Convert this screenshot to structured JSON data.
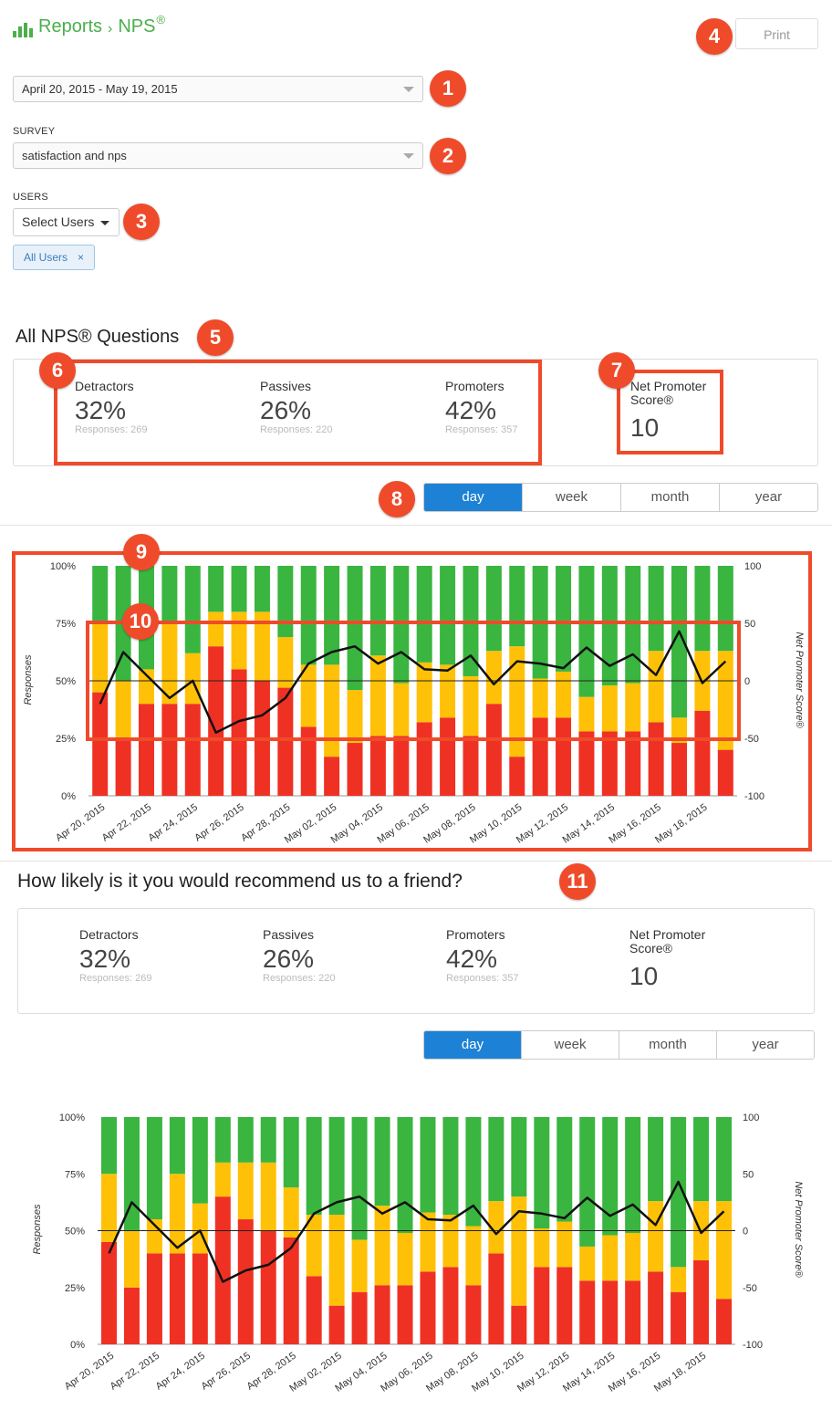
{
  "header": {
    "section": "Reports",
    "page": "NPS",
    "registered": "®",
    "print_label": "Print"
  },
  "filters": {
    "date_range": "April 20, 2015 - May 19, 2015",
    "survey_label": "SURVEY",
    "survey_value": "satisfaction and nps",
    "users_label": "USERS",
    "users_button": "Select Users",
    "user_tag": "All Users",
    "user_tag_remove": "×"
  },
  "annotations": [
    "1",
    "2",
    "3",
    "4",
    "5",
    "6",
    "7",
    "8",
    "9",
    "10",
    "11"
  ],
  "sections": [
    {
      "heading": "All NPS® Questions",
      "detractors_label": "Detractors",
      "detractors_pct": "32%",
      "detractors_resp": "Responses: 269",
      "passives_label": "Passives",
      "passives_pct": "26%",
      "passives_resp": "Responses: 220",
      "promoters_label": "Promoters",
      "promoters_pct": "42%",
      "promoters_resp": "Responses: 357",
      "nps_label_1": "Net Promoter",
      "nps_label_2": "Score®",
      "nps_value": "10",
      "tabs": [
        "day",
        "week",
        "month",
        "year"
      ],
      "active_tab": "day"
    },
    {
      "heading": "How likely is it you would recommend us to a friend?",
      "detractors_label": "Detractors",
      "detractors_pct": "32%",
      "detractors_resp": "Responses: 269",
      "passives_label": "Passives",
      "passives_pct": "26%",
      "passives_resp": "Responses: 220",
      "promoters_label": "Promoters",
      "promoters_pct": "42%",
      "promoters_resp": "Responses: 357",
      "nps_label_1": "Net Promoter",
      "nps_label_2": "Score®",
      "nps_value": "10",
      "tabs": [
        "day",
        "week",
        "month",
        "year"
      ],
      "active_tab": "day"
    }
  ],
  "colors": {
    "detractors": "#ef3124",
    "passives": "#ffc107",
    "promoters": "#3ab540",
    "nps_line": "#111111",
    "accent": "#1d82d6",
    "annotation": "#ef4b2b"
  },
  "chart_data": [
    {
      "type": "bar",
      "stacked": true,
      "title": "",
      "ylabel": "Responses",
      "y2label": "Net Promoter Score®",
      "ylim": [
        0,
        100
      ],
      "y2lim": [
        -100,
        100
      ],
      "yticks": [
        "0%",
        "25%",
        "50%",
        "75%",
        "100%"
      ],
      "y2ticks": [
        "-100",
        "-50",
        "0",
        "50",
        "100"
      ],
      "xtick_labels": [
        "Apr 20, 2015",
        "Apr 22, 2015",
        "Apr 24, 2015",
        "Apr 26, 2015",
        "Apr 28, 2015",
        "May 02, 2015",
        "May 04, 2015",
        "May 06, 2015",
        "May 08, 2015",
        "May 10, 2015",
        "May 12, 2015",
        "May 14, 2015",
        "May 16, 2015",
        "May 18, 2015"
      ],
      "series": [
        {
          "name": "Detractors",
          "values": [
            45,
            25,
            40,
            40,
            40,
            65,
            55,
            50,
            47,
            30,
            17,
            23,
            26,
            26,
            32,
            34,
            26,
            40,
            17,
            34,
            34,
            28,
            28,
            28,
            32,
            23,
            37,
            20
          ]
        },
        {
          "name": "Passives",
          "values": [
            30,
            25,
            15,
            35,
            22,
            15,
            25,
            30,
            22,
            27,
            40,
            23,
            35,
            23,
            26,
            23,
            26,
            23,
            48,
            17,
            20,
            15,
            20,
            21,
            31,
            11,
            26,
            43
          ]
        },
        {
          "name": "Promoters",
          "values": [
            25,
            50,
            45,
            25,
            38,
            20,
            20,
            20,
            31,
            43,
            43,
            54,
            39,
            51,
            42,
            43,
            48,
            37,
            35,
            49,
            46,
            57,
            52,
            51,
            37,
            66,
            37,
            37
          ]
        }
      ],
      "nps": [
        -20,
        25,
        5,
        -15,
        0,
        -45,
        -35,
        -30,
        -15,
        15,
        25,
        30,
        15,
        25,
        10,
        9,
        22,
        -3,
        17,
        15,
        11,
        29,
        13,
        23,
        5,
        43,
        -2,
        17
      ]
    },
    {
      "type": "bar",
      "stacked": true,
      "title": "",
      "ylabel": "Responses",
      "y2label": "Net Promoter Score®",
      "ylim": [
        0,
        100
      ],
      "y2lim": [
        -100,
        100
      ],
      "yticks": [
        "0%",
        "25%",
        "50%",
        "75%",
        "100%"
      ],
      "y2ticks": [
        "-100",
        "-50",
        "0",
        "50",
        "100"
      ],
      "xtick_labels": [
        "Apr 20, 2015",
        "Apr 22, 2015",
        "Apr 24, 2015",
        "Apr 26, 2015",
        "Apr 28, 2015",
        "May 02, 2015",
        "May 04, 2015",
        "May 06, 2015",
        "May 08, 2015",
        "May 10, 2015",
        "May 12, 2015",
        "May 14, 2015",
        "May 16, 2015",
        "May 18, 2015"
      ],
      "series": [
        {
          "name": "Detractors",
          "values": [
            45,
            25,
            40,
            40,
            40,
            65,
            55,
            50,
            47,
            30,
            17,
            23,
            26,
            26,
            32,
            34,
            26,
            40,
            17,
            34,
            34,
            28,
            28,
            28,
            32,
            23,
            37,
            20
          ]
        },
        {
          "name": "Passives",
          "values": [
            30,
            25,
            15,
            35,
            22,
            15,
            25,
            30,
            22,
            27,
            40,
            23,
            35,
            23,
            26,
            23,
            26,
            23,
            48,
            17,
            20,
            15,
            20,
            21,
            31,
            11,
            26,
            43
          ]
        },
        {
          "name": "Promoters",
          "values": [
            25,
            50,
            45,
            25,
            38,
            20,
            20,
            20,
            31,
            43,
            43,
            54,
            39,
            51,
            42,
            43,
            48,
            37,
            35,
            49,
            46,
            57,
            52,
            51,
            37,
            66,
            37,
            37
          ]
        }
      ],
      "nps": [
        -20,
        25,
        5,
        -15,
        0,
        -45,
        -35,
        -30,
        -15,
        15,
        25,
        30,
        15,
        25,
        10,
        9,
        22,
        -3,
        17,
        15,
        11,
        29,
        13,
        23,
        5,
        43,
        -2,
        17
      ]
    }
  ]
}
